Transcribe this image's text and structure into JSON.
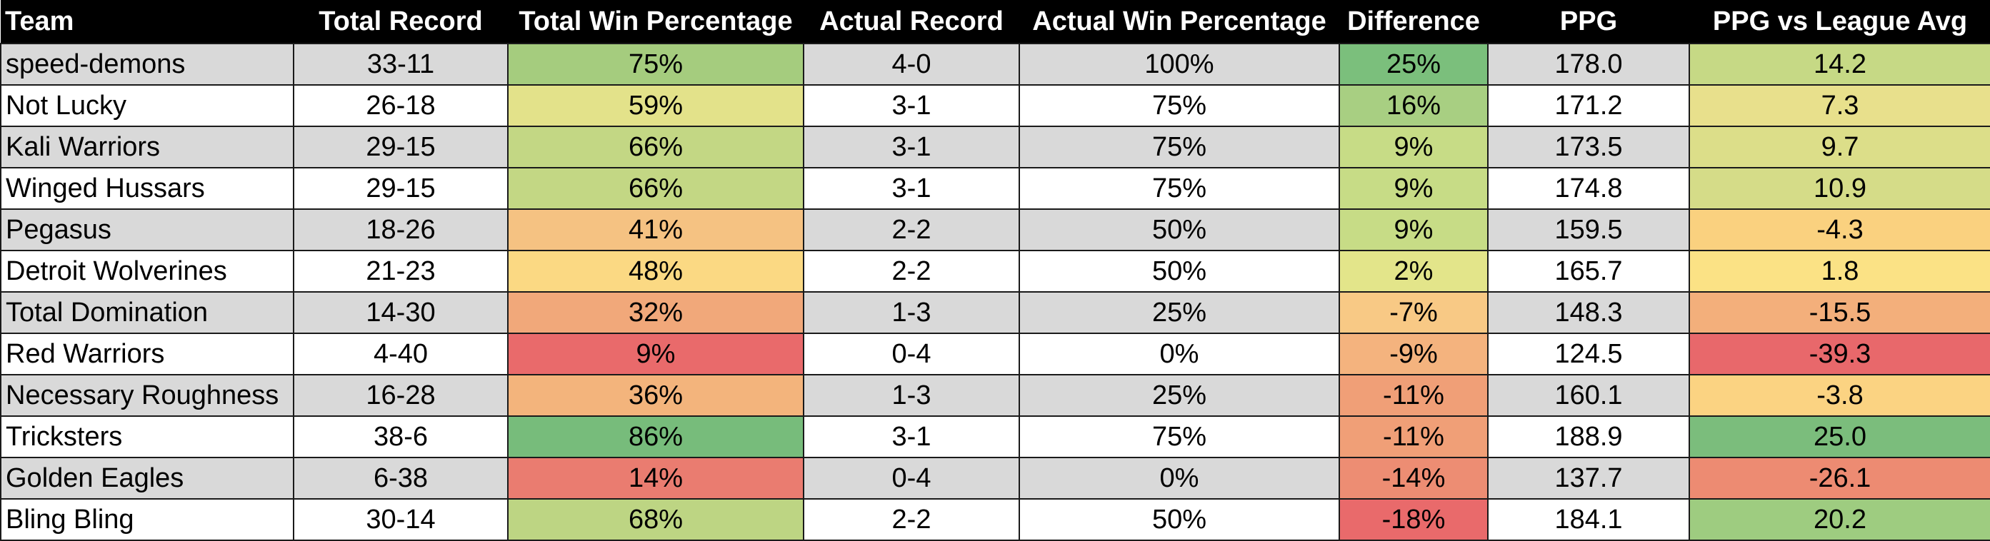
{
  "table": {
    "headers": [
      "Team",
      "Total Record",
      "Total Win Percentage",
      "Actual Record",
      "Actual Win Percentage",
      "Difference",
      "PPG",
      "PPG vs League Avg"
    ],
    "rows": [
      {
        "team": "speed-demons",
        "total_record": "33-11",
        "total_win_pct": "75%",
        "actual_record": "4-0",
        "actual_win_pct": "100%",
        "difference": "25%",
        "ppg": "178.0",
        "ppg_vs_avg": "14.2",
        "row_color": "#d9d9d9",
        "colors": {
          "total_win_pct": "#a5cc7e",
          "difference": "#7bbf7c",
          "ppg_vs_avg": "#c6d985"
        }
      },
      {
        "team": "Not Lucky",
        "total_record": "26-18",
        "total_win_pct": "59%",
        "actual_record": "3-1",
        "actual_win_pct": "75%",
        "difference": "16%",
        "ppg": "171.2",
        "ppg_vs_avg": "7.3",
        "row_color": "#ffffff",
        "colors": {
          "total_win_pct": "#e3e28a",
          "difference": "#a8cf82",
          "ppg_vs_avg": "#e8e08c"
        }
      },
      {
        "team": "Kali Warriors",
        "total_record": "29-15",
        "total_win_pct": "66%",
        "actual_record": "3-1",
        "actual_win_pct": "75%",
        "difference": "9%",
        "ppg": "173.5",
        "ppg_vs_avg": "9.7",
        "row_color": "#d9d9d9",
        "colors": {
          "total_win_pct": "#c3d784",
          "difference": "#c7dc86",
          "ppg_vs_avg": "#dcde89"
        }
      },
      {
        "team": "Winged Hussars",
        "total_record": "29-15",
        "total_win_pct": "66%",
        "actual_record": "3-1",
        "actual_win_pct": "75%",
        "difference": "9%",
        "ppg": "174.8",
        "ppg_vs_avg": "10.9",
        "row_color": "#ffffff",
        "colors": {
          "total_win_pct": "#c3d784",
          "difference": "#c7dc86",
          "ppg_vs_avg": "#d5dc88"
        }
      },
      {
        "team": "Pegasus",
        "total_record": "18-26",
        "total_win_pct": "41%",
        "actual_record": "2-2",
        "actual_win_pct": "50%",
        "difference": "9%",
        "ppg": "159.5",
        "ppg_vs_avg": "-4.3",
        "row_color": "#d9d9d9",
        "colors": {
          "total_win_pct": "#f5c282",
          "difference": "#c7dc86",
          "ppg_vs_avg": "#fad17f"
        }
      },
      {
        "team": "Detroit Wolverines",
        "total_record": "21-23",
        "total_win_pct": "48%",
        "actual_record": "2-2",
        "actual_win_pct": "50%",
        "difference": "2%",
        "ppg": "165.7",
        "ppg_vs_avg": "1.8",
        "row_color": "#ffffff",
        "colors": {
          "total_win_pct": "#fbd983",
          "difference": "#e3e58a",
          "ppg_vs_avg": "#fbe285"
        }
      },
      {
        "team": "Total Domination",
        "total_record": "14-30",
        "total_win_pct": "32%",
        "actual_record": "1-3",
        "actual_win_pct": "25%",
        "difference": "-7%",
        "ppg": "148.3",
        "ppg_vs_avg": "-15.5",
        "row_color": "#d9d9d9",
        "colors": {
          "total_win_pct": "#f1a87a",
          "difference": "#f8c985",
          "ppg_vs_avg": "#f3af7b"
        }
      },
      {
        "team": "Red Warriors",
        "total_record": "4-40",
        "total_win_pct": "9%",
        "actual_record": "0-4",
        "actual_win_pct": "0%",
        "difference": "-9%",
        "ppg": "124.5",
        "ppg_vs_avg": "-39.3",
        "row_color": "#ffffff",
        "colors": {
          "total_win_pct": "#e96a6b",
          "difference": "#f4b37e",
          "ppg_vs_avg": "#e8686b"
        }
      },
      {
        "team": "Necessary Roughness",
        "total_record": "16-28",
        "total_win_pct": "36%",
        "actual_record": "1-3",
        "actual_win_pct": "25%",
        "difference": "-11%",
        "ppg": "160.1",
        "ppg_vs_avg": "-3.8",
        "row_color": "#d9d9d9",
        "colors": {
          "total_win_pct": "#f3b47c",
          "difference": "#f09f77",
          "ppg_vs_avg": "#fbd382"
        }
      },
      {
        "team": "Tricksters",
        "total_record": "38-6",
        "total_win_pct": "86%",
        "actual_record": "3-1",
        "actual_win_pct": "75%",
        "difference": "-11%",
        "ppg": "188.9",
        "ppg_vs_avg": "25.0",
        "row_color": "#ffffff",
        "colors": {
          "total_win_pct": "#77bc7b",
          "difference": "#f09f77",
          "ppg_vs_avg": "#7bbd7c"
        }
      },
      {
        "team": "Golden Eagles",
        "total_record": "6-38",
        "total_win_pct": "14%",
        "actual_record": "0-4",
        "actual_win_pct": "0%",
        "difference": "-14%",
        "ppg": "137.7",
        "ppg_vs_avg": "-26.1",
        "row_color": "#d9d9d9",
        "colors": {
          "total_win_pct": "#ea7c70",
          "difference": "#ed8d73",
          "ppg_vs_avg": "#ed8b72"
        }
      },
      {
        "team": "Bling Bling",
        "total_record": "30-14",
        "total_win_pct": "68%",
        "actual_record": "2-2",
        "actual_win_pct": "50%",
        "difference": "-18%",
        "ppg": "184.1",
        "ppg_vs_avg": "20.2",
        "row_color": "#ffffff",
        "colors": {
          "total_win_pct": "#bdd583",
          "difference": "#e96a6b",
          "ppg_vs_avg": "#9ecc80"
        }
      }
    ]
  }
}
